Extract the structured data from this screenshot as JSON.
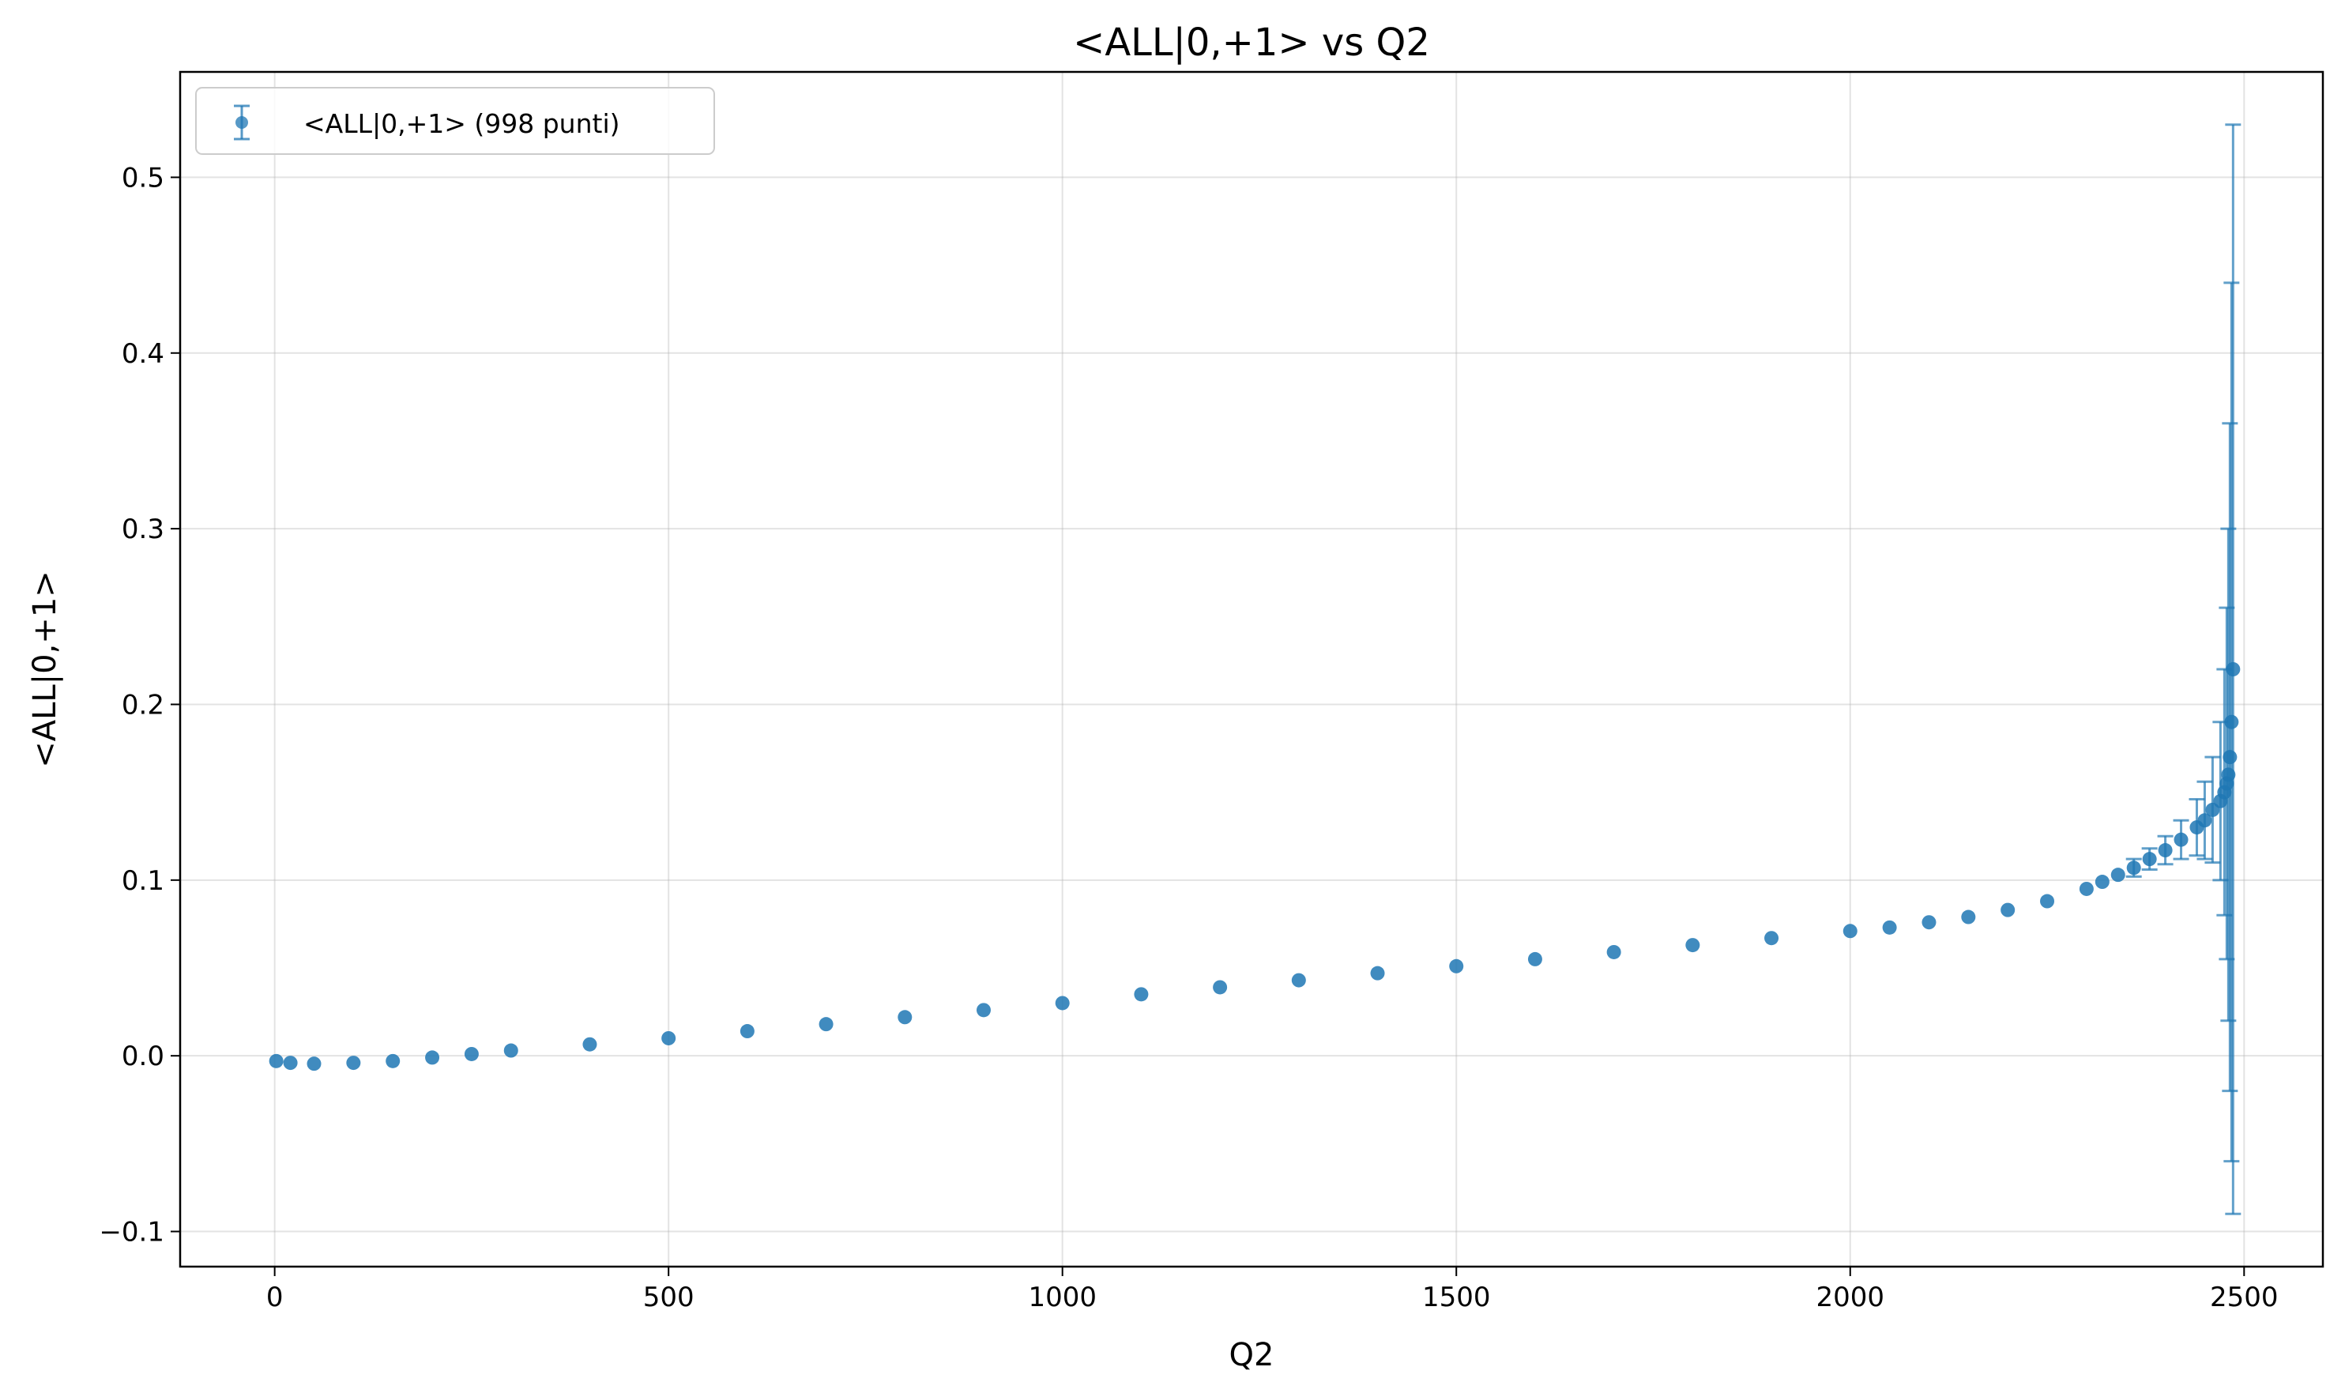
{
  "chart_data": {
    "type": "scatter",
    "title": "<ALL|0,+1> vs Q2",
    "xlabel": "Q2",
    "ylabel": "<ALL|0,+1>",
    "xlim": [
      -120,
      2600
    ],
    "ylim": [
      -0.12,
      0.56
    ],
    "xticks": [
      0,
      500,
      1000,
      1500,
      2000,
      2500
    ],
    "yticks": [
      -0.1,
      0.0,
      0.1,
      0.2,
      0.3,
      0.4,
      0.5
    ],
    "xtick_labels": [
      "0",
      "500",
      "1000",
      "1500",
      "2000",
      "2500"
    ],
    "ytick_labels": [
      "−0.1",
      "0.0",
      "0.1",
      "0.2",
      "0.3",
      "0.4",
      "0.5"
    ],
    "grid": true,
    "legend": {
      "position": "upper-left",
      "entries": [
        {
          "label": "<ALL|0,+1> (998 punti)",
          "marker": "errorbar-point"
        }
      ]
    },
    "series": [
      {
        "name": "<ALL|0,+1> (998 punti)",
        "color": "#1f77b4",
        "n_points": 998,
        "x": [
          2,
          20,
          50,
          100,
          150,
          200,
          250,
          300,
          400,
          500,
          600,
          700,
          800,
          900,
          1000,
          1100,
          1200,
          1300,
          1400,
          1500,
          1600,
          1700,
          1800,
          1900,
          2000,
          2050,
          2100,
          2150,
          2200,
          2250,
          2300,
          2320,
          2340,
          2360,
          2380,
          2400,
          2420,
          2440,
          2450,
          2460,
          2470,
          2475,
          2478,
          2480,
          2482,
          2484,
          2486
        ],
        "y": [
          -0.003,
          -0.004,
          -0.0045,
          -0.004,
          -0.003,
          -0.001,
          0.001,
          0.003,
          0.0065,
          0.01,
          0.014,
          0.018,
          0.022,
          0.026,
          0.03,
          0.035,
          0.039,
          0.043,
          0.047,
          0.051,
          0.055,
          0.059,
          0.063,
          0.067,
          0.071,
          0.073,
          0.076,
          0.079,
          0.083,
          0.088,
          0.095,
          0.099,
          0.103,
          0.107,
          0.112,
          0.117,
          0.123,
          0.13,
          0.134,
          0.14,
          0.145,
          0.15,
          0.155,
          0.16,
          0.17,
          0.19,
          0.22
        ],
        "yerr": [
          0.0015,
          0.0015,
          0.0015,
          0.0015,
          0.0015,
          0.0015,
          0.0015,
          0.0015,
          0.0015,
          0.0015,
          0.0015,
          0.0015,
          0.0015,
          0.0015,
          0.0015,
          0.0015,
          0.0015,
          0.0015,
          0.0015,
          0.0015,
          0.0015,
          0.0015,
          0.0015,
          0.0015,
          0.0015,
          0.0016,
          0.0017,
          0.0018,
          0.002,
          0.0025,
          0.003,
          0.0035,
          0.004,
          0.005,
          0.006,
          0.008,
          0.011,
          0.016,
          0.022,
          0.03,
          0.045,
          0.07,
          0.1,
          0.14,
          0.19,
          0.25,
          0.31
        ]
      }
    ]
  }
}
